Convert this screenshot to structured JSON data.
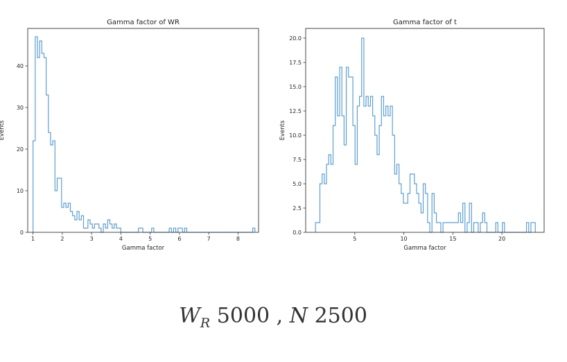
{
  "chart_data": [
    {
      "type": "histogram",
      "title": "Gamma factor of WR",
      "xlabel": "Gamma factor",
      "ylabel": "Events",
      "xlim": [
        0.82,
        8.7
      ],
      "ylim": [
        0,
        49
      ],
      "xticks": [
        1,
        2,
        3,
        4,
        5,
        6,
        7,
        8
      ],
      "yticks": [
        0,
        10,
        20,
        30,
        40
      ],
      "bin_edges": [
        1.0,
        1.075,
        1.15,
        1.225,
        1.3,
        1.375,
        1.45,
        1.525,
        1.6,
        1.675,
        1.75,
        1.825,
        1.9,
        1.975,
        2.05,
        2.125,
        2.2,
        2.275,
        2.35,
        2.425,
        2.5,
        2.575,
        2.65,
        2.725,
        2.8,
        2.875,
        2.95,
        3.025,
        3.1,
        3.175,
        3.25,
        3.325,
        3.4,
        3.475,
        3.55,
        3.625,
        3.7,
        3.775,
        3.85,
        3.925,
        4.0,
        4.075,
        4.15,
        4.225,
        4.3,
        4.375,
        4.45,
        4.525,
        4.6,
        4.675,
        4.75,
        4.825,
        4.9,
        4.975,
        5.05,
        5.125,
        5.2,
        5.275,
        5.35,
        5.425,
        5.5,
        5.575,
        5.65,
        5.725,
        5.8,
        5.875,
        5.95,
        6.025,
        6.1,
        6.175,
        6.25,
        6.325,
        6.4,
        6.475,
        6.55,
        6.625,
        6.7,
        6.775,
        6.85,
        6.925,
        7.0,
        7.075,
        7.15,
        7.225,
        7.3,
        7.375,
        7.45,
        7.525,
        7.6,
        7.675,
        7.75,
        7.825,
        7.9,
        7.975,
        8.05,
        8.125,
        8.2,
        8.275,
        8.35,
        8.425,
        8.5,
        8.575
      ],
      "counts": [
        22,
        47,
        42,
        46,
        43,
        42,
        33,
        24,
        21,
        22,
        10,
        13,
        13,
        6,
        7,
        6,
        7,
        5,
        4,
        3,
        5,
        3,
        4,
        1,
        1,
        3,
        2,
        1,
        2,
        2,
        1,
        0,
        2,
        1,
        3,
        2,
        1,
        2,
        1,
        1,
        0,
        0,
        0,
        0,
        0,
        0,
        0,
        0,
        1,
        1,
        0,
        0,
        0,
        0,
        1,
        0,
        0,
        0,
        0,
        0,
        0,
        0,
        1,
        0,
        1,
        0,
        1,
        1,
        0,
        1,
        0,
        0,
        0,
        0,
        0,
        0,
        0,
        0,
        0,
        0,
        0,
        0,
        0,
        0,
        0,
        0,
        0,
        0,
        0,
        0,
        0,
        0,
        0,
        0,
        0,
        0,
        0,
        0,
        0,
        0,
        1
      ],
      "color": "#5b9fd1"
    },
    {
      "type": "histogram",
      "title": "Gamma factor of t",
      "xlabel": "Gamma factor",
      "ylabel": "Events",
      "xlim": [
        0.0,
        24.3
      ],
      "ylim": [
        0,
        21
      ],
      "xticks": [
        5,
        10,
        15,
        20
      ],
      "yticks": [
        0.0,
        2.5,
        5.0,
        7.5,
        10.0,
        12.5,
        15.0,
        17.5,
        20.0
      ],
      "ytick_labels": [
        "0.0",
        "2.5",
        "5.0",
        "7.5",
        "10.0",
        "12.5",
        "15.0",
        "17.5",
        "20.0"
      ],
      "bin_edges": [
        1.0,
        1.224,
        1.448,
        1.672,
        1.896,
        2.12,
        2.344,
        2.568,
        2.792,
        3.016,
        3.24,
        3.464,
        3.688,
        3.912,
        4.136,
        4.36,
        4.584,
        4.808,
        5.032,
        5.256,
        5.48,
        5.704,
        5.928,
        6.152,
        6.376,
        6.6,
        6.824,
        7.048,
        7.272,
        7.496,
        7.72,
        7.944,
        8.168,
        8.392,
        8.616,
        8.84,
        9.064,
        9.288,
        9.512,
        9.736,
        9.96,
        10.184,
        10.408,
        10.632,
        10.856,
        11.08,
        11.304,
        11.528,
        11.752,
        11.976,
        12.2,
        12.424,
        12.648,
        12.872,
        13.096,
        13.32,
        13.544,
        13.768,
        13.992,
        14.216,
        14.44,
        14.664,
        14.888,
        15.112,
        15.336,
        15.56,
        15.784,
        16.008,
        16.232,
        16.456,
        16.68,
        16.904,
        17.128,
        17.352,
        17.576,
        17.8,
        18.024,
        18.248,
        18.472,
        18.696,
        18.92,
        19.144,
        19.368,
        19.592,
        19.816,
        20.04,
        20.264,
        20.488,
        20.712,
        20.936,
        21.16,
        21.384,
        21.608,
        21.832,
        22.056,
        22.28,
        22.504,
        22.728,
        22.952,
        23.176,
        23.4
      ],
      "counts": [
        1,
        1,
        5,
        6,
        5,
        7,
        8,
        7,
        11,
        16,
        12,
        17,
        12,
        9,
        17,
        16,
        16,
        11,
        7,
        13,
        14,
        20,
        13,
        14,
        13,
        14,
        12,
        10,
        8,
        11,
        14,
        12,
        13,
        12,
        13,
        10,
        6,
        7,
        5,
        4,
        3,
        3,
        4,
        6,
        6,
        5,
        4,
        3,
        2,
        5,
        4,
        1,
        0,
        4,
        2,
        1,
        1,
        0,
        1,
        1,
        1,
        1,
        1,
        1,
        1,
        2,
        1,
        3,
        0,
        1,
        3,
        0,
        1,
        1,
        0,
        1,
        2,
        1,
        0,
        0,
        0,
        0,
        1,
        0,
        0,
        1,
        0,
        0,
        0,
        0,
        0,
        0,
        0,
        0,
        0,
        0,
        1,
        0,
        1,
        1
      ],
      "color": "#5b9fd1"
    }
  ],
  "caption": {
    "symbol_w": "W",
    "sub_r": "R",
    "wr_value": "5000",
    "sep": ",",
    "symbol_n": "N",
    "n_value": "2500"
  }
}
